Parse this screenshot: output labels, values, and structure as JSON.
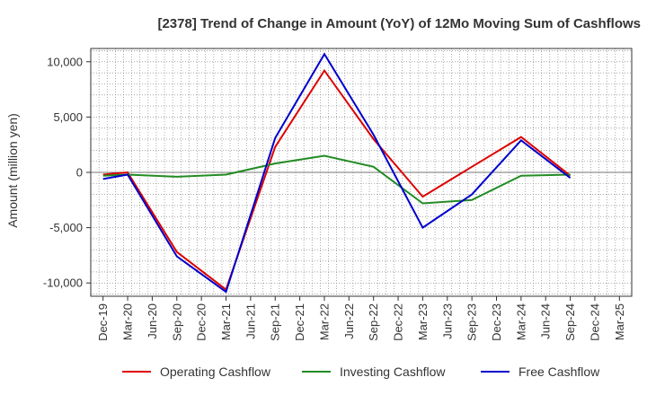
{
  "chart_data": {
    "type": "line",
    "title": "[2378]  Trend of Change in Amount (YoY) of 12Mo Moving Sum of Cashflows",
    "xlabel": "",
    "ylabel": "Amount (million yen)",
    "ylim": [
      -11200,
      11200
    ],
    "yticks": [
      10000,
      5000,
      0,
      -5000,
      -10000
    ],
    "ytick_labels": [
      "10,000",
      "5,000",
      "0",
      "-5,000",
      "-10,000"
    ],
    "categories": [
      "Dec-19",
      "Mar-20",
      "Jun-20",
      "Sep-20",
      "Dec-20",
      "Mar-21",
      "Jun-21",
      "Sep-21",
      "Dec-21",
      "Mar-22",
      "Jun-22",
      "Sep-22",
      "Dec-22",
      "Mar-23",
      "Jun-23",
      "Sep-23",
      "Dec-23",
      "Mar-24",
      "Jun-24",
      "Sep-24",
      "Dec-24",
      "Mar-25"
    ],
    "grid": true,
    "legend_position": "bottom",
    "series": [
      {
        "name": "Operating Cashflow",
        "color": "#dd0000",
        "values": [
          -200,
          0,
          null,
          -7200,
          null,
          -10600,
          null,
          2300,
          null,
          9200,
          null,
          3000,
          null,
          -2200,
          null,
          500,
          null,
          3200,
          null,
          -300,
          null,
          null
        ]
      },
      {
        "name": "Investing Cashflow",
        "color": "#228b22",
        "values": [
          -300,
          -200,
          null,
          -400,
          null,
          -200,
          null,
          800,
          null,
          1500,
          null,
          500,
          null,
          -2800,
          null,
          -2500,
          null,
          -300,
          null,
          -200,
          null,
          null
        ]
      },
      {
        "name": "Free Cashflow",
        "color": "#0000cc",
        "values": [
          -600,
          -200,
          null,
          -7600,
          null,
          -10800,
          null,
          3100,
          null,
          10700,
          null,
          3400,
          null,
          -5000,
          null,
          -2000,
          null,
          2900,
          null,
          -500,
          null,
          null
        ]
      }
    ]
  }
}
